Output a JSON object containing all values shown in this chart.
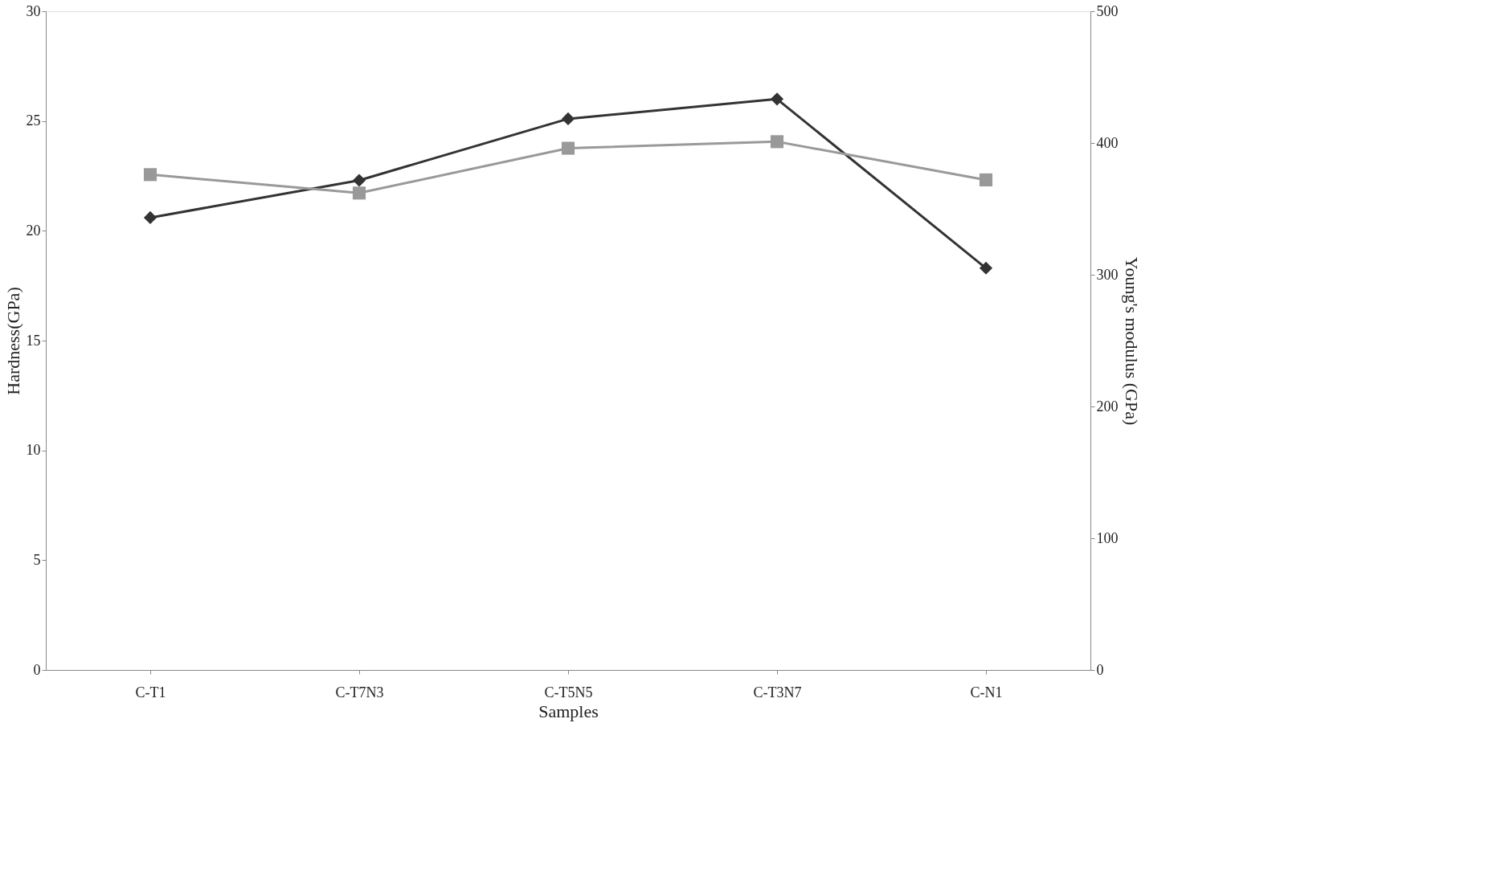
{
  "chart_data": {
    "type": "line",
    "xlabel": "Samples",
    "ylabel": "Hardness(GPa)",
    "y2label": "Young's modulus (GPa)",
    "categories": [
      "C-T1",
      "C-T7N3",
      "C-T5N5",
      "C-T3N7",
      "C-N1"
    ],
    "series": [
      {
        "color": "#333333",
        "marker": "diamond",
        "values": [
          20.6,
          22.3,
          25.1,
          26.0,
          18.3
        ]
      },
      {
        "color": "#999999",
        "marker": "square",
        "axis": "y2",
        "values": [
          376,
          362,
          396,
          401,
          372
        ]
      }
    ],
    "ylim": [
      0,
      30
    ],
    "yticks": [
      0,
      5,
      10,
      15,
      20,
      25,
      30
    ],
    "y2lim": [
      0,
      500
    ],
    "y2ticks": [
      0,
      100,
      200,
      300,
      400,
      500
    ],
    "grid": false
  }
}
